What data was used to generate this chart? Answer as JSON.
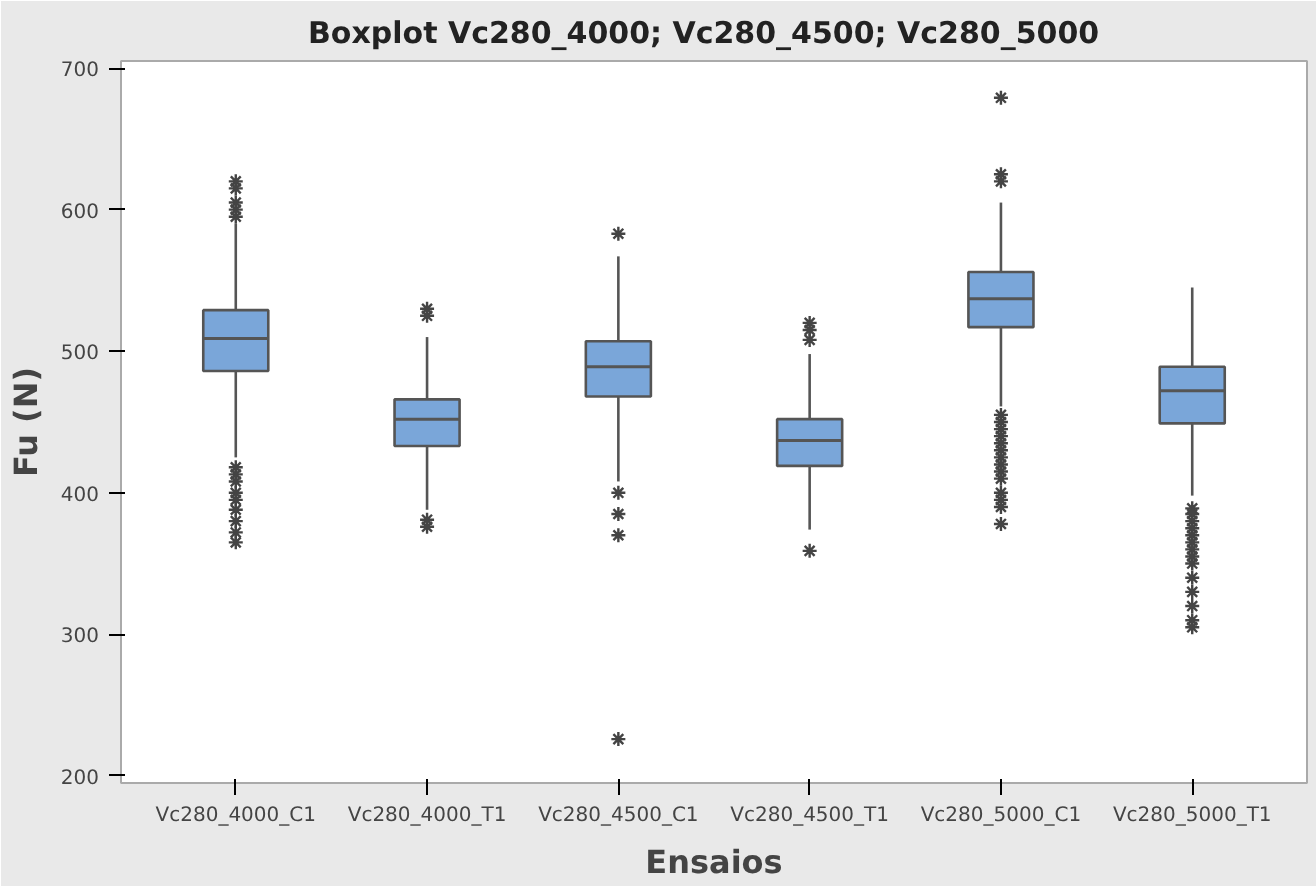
{
  "chart_data": {
    "type": "box",
    "title": "Boxplot  Vc280_4000;  Vc280_4500; Vc280_5000",
    "xlabel": "Ensaios",
    "ylabel": "Fu (N)",
    "categories": [
      "Vc280_4000_C1",
      "Vc280_4000_T1",
      "Vc280_4500_C1",
      "Vc280_4500_T1",
      "Vc280_5000_C1",
      "Vc280_5000_T1"
    ],
    "color": "#7aa6d9",
    "marker": "cross",
    "grid": false,
    "ylim": [
      195,
      705
    ],
    "yticks": [
      200,
      300,
      400,
      500,
      600,
      700
    ],
    "boxes": [
      {
        "low": 425,
        "q1": 486,
        "median": 509,
        "q3": 529,
        "high": 590,
        "outliers": [
          620,
          615,
          605,
          600,
          595,
          418,
          413,
          408,
          400,
          395,
          388,
          380,
          372,
          365
        ]
      },
      {
        "low": 388,
        "q1": 433,
        "median": 452,
        "q3": 466,
        "high": 510,
        "outliers": [
          530,
          525,
          381,
          376
        ]
      },
      {
        "low": 408,
        "q1": 468,
        "median": 489,
        "q3": 507,
        "high": 567,
        "outliers": [
          583,
          400,
          385,
          370,
          226
        ]
      },
      {
        "low": 374,
        "q1": 419,
        "median": 437,
        "q3": 452,
        "high": 498,
        "outliers": [
          520,
          515,
          508,
          359
        ]
      },
      {
        "low": 461,
        "q1": 517,
        "median": 537,
        "q3": 556,
        "high": 605,
        "outliers": [
          679,
          625,
          620,
          455,
          450,
          445,
          440,
          435,
          430,
          425,
          420,
          415,
          410,
          400,
          395,
          390,
          378
        ]
      },
      {
        "low": 398,
        "q1": 449,
        "median": 472,
        "q3": 489,
        "high": 545,
        "outliers": [
          389,
          385,
          380,
          375,
          370,
          365,
          360,
          355,
          350,
          340,
          330,
          320,
          310,
          305
        ]
      }
    ]
  }
}
